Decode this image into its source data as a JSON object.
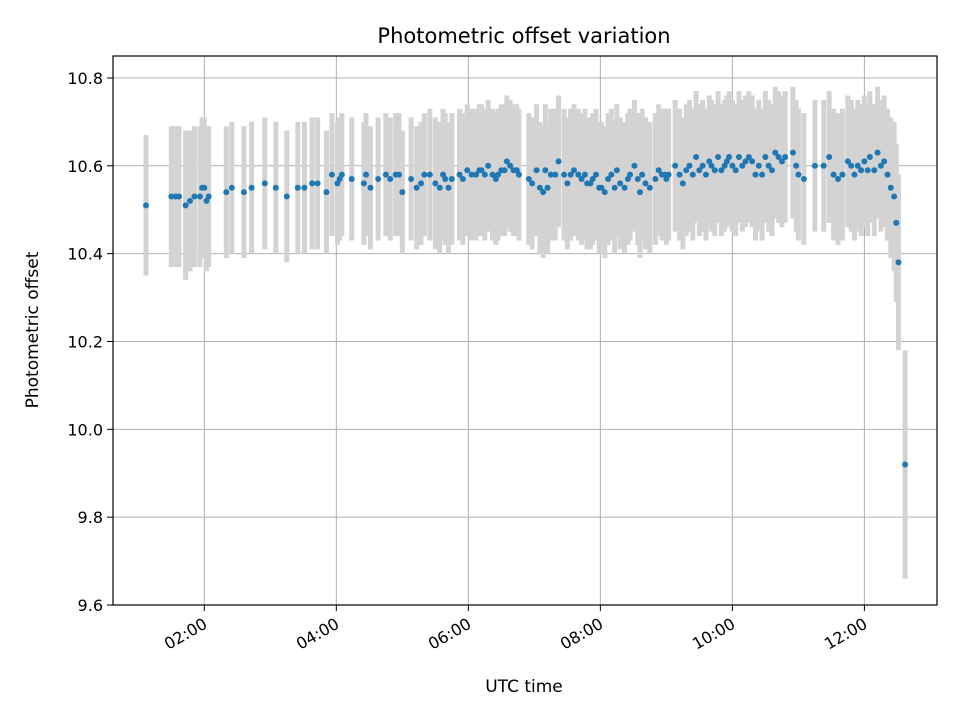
{
  "chart_data": {
    "type": "scatter",
    "title": "Photometric offset variation",
    "xlabel": "UTC time",
    "ylabel": "Photometric offset",
    "xlim": [
      "00:37",
      "13:06"
    ],
    "ylim": [
      9.6,
      10.85
    ],
    "x_ticks": [
      "02:00",
      "04:00",
      "06:00",
      "08:00",
      "10:00",
      "12:00"
    ],
    "y_ticks": [
      "9.6",
      "9.8",
      "10.0",
      "10.2",
      "10.4",
      "10.6",
      "10.8"
    ],
    "grid": true,
    "colors": {
      "marker": "#1f77b4",
      "errorbar": "#d3d3d3",
      "grid": "#b0b0b0"
    },
    "series": [
      {
        "x": [
          "01:07",
          "01:30",
          "01:34",
          "01:37",
          "01:43",
          "01:47",
          "01:51",
          "01:56",
          "01:58",
          "02:00",
          "02:02",
          "02:04",
          "02:20",
          "02:25",
          "02:36",
          "02:43",
          "02:55",
          "03:05",
          "03:15",
          "03:25",
          "03:31",
          "03:38",
          "03:43",
          "03:51",
          "03:56",
          "04:01",
          "04:03",
          "04:05",
          "04:14",
          "04:25",
          "04:27",
          "04:31",
          "04:38",
          "04:45",
          "04:49",
          "04:54",
          "04:57",
          "05:00",
          "05:08",
          "05:13",
          "05:17",
          "05:20",
          "05:25",
          "05:30",
          "05:34",
          "05:37",
          "05:39",
          "05:42",
          "05:45",
          "05:52",
          "05:55",
          "05:59",
          "06:03",
          "06:07",
          "06:10",
          "06:12",
          "06:15",
          "06:18",
          "06:22",
          "06:25",
          "06:27",
          "06:30",
          "06:33",
          "06:35",
          "06:38",
          "06:41",
          "06:44",
          "06:46",
          "06:55",
          "06:58",
          "07:02",
          "07:05",
          "07:08",
          "07:10",
          "07:12",
          "07:15",
          "07:19",
          "07:22",
          "07:27",
          "07:30",
          "07:33",
          "07:36",
          "07:40",
          "07:43",
          "07:46",
          "07:48",
          "07:51",
          "07:53",
          "07:56",
          "07:59",
          "08:01",
          "08:04",
          "08:07",
          "08:10",
          "08:13",
          "08:15",
          "08:18",
          "08:22",
          "08:25",
          "08:27",
          "08:31",
          "08:34",
          "08:36",
          "08:38",
          "08:41",
          "08:45",
          "08:50",
          "08:53",
          "08:56",
          "08:59",
          "09:00",
          "09:02",
          "09:08",
          "09:12",
          "09:15",
          "09:18",
          "09:21",
          "09:24",
          "09:27",
          "09:30",
          "09:33",
          "09:36",
          "09:39",
          "09:41",
          "09:44",
          "09:47",
          "09:50",
          "09:53",
          "09:55",
          "09:57",
          "10:00",
          "10:03",
          "10:06",
          "10:09",
          "10:12",
          "10:15",
          "10:18",
          "10:21",
          "10:24",
          "10:27",
          "10:30",
          "10:33",
          "10:36",
          "10:39",
          "10:42",
          "10:45",
          "10:48",
          "10:55",
          "10:58",
          "11:00",
          "11:05",
          "11:15",
          "11:23",
          "11:28",
          "11:32",
          "11:36",
          "11:40",
          "11:45",
          "11:48",
          "11:51",
          "11:54",
          "11:57",
          "12:00",
          "12:03",
          "12:05",
          "12:09",
          "12:12",
          "12:15",
          "12:18",
          "12:21",
          "12:24",
          "12:27",
          "12:29",
          "12:31",
          "12:37"
        ],
        "y": [
          10.51,
          10.53,
          10.53,
          10.53,
          10.51,
          10.52,
          10.53,
          10.53,
          10.55,
          10.55,
          10.52,
          10.53,
          10.54,
          10.55,
          10.54,
          10.55,
          10.56,
          10.55,
          10.53,
          10.55,
          10.55,
          10.56,
          10.56,
          10.54,
          10.58,
          10.56,
          10.57,
          10.58,
          10.57,
          10.56,
          10.58,
          10.55,
          10.57,
          10.58,
          10.57,
          10.58,
          10.58,
          10.54,
          10.57,
          10.55,
          10.56,
          10.58,
          10.58,
          10.56,
          10.55,
          10.58,
          10.57,
          10.55,
          10.57,
          10.58,
          10.57,
          10.59,
          10.58,
          10.58,
          10.59,
          10.59,
          10.58,
          10.6,
          10.58,
          10.57,
          10.58,
          10.59,
          10.59,
          10.61,
          10.6,
          10.59,
          10.59,
          10.58,
          10.57,
          10.56,
          10.59,
          10.55,
          10.54,
          10.59,
          10.55,
          10.58,
          10.58,
          10.61,
          10.58,
          10.56,
          10.58,
          10.59,
          10.58,
          10.57,
          10.58,
          10.56,
          10.56,
          10.57,
          10.58,
          10.55,
          10.55,
          10.54,
          10.57,
          10.58,
          10.55,
          10.59,
          10.56,
          10.55,
          10.57,
          10.58,
          10.6,
          10.57,
          10.54,
          10.58,
          10.56,
          10.55,
          10.57,
          10.59,
          10.58,
          10.58,
          10.57,
          10.58,
          10.6,
          10.58,
          10.56,
          10.59,
          10.6,
          10.58,
          10.62,
          10.59,
          10.6,
          10.58,
          10.61,
          10.6,
          10.59,
          10.62,
          10.59,
          10.6,
          10.61,
          10.62,
          10.6,
          10.59,
          10.62,
          10.6,
          10.61,
          10.62,
          10.61,
          10.58,
          10.6,
          10.58,
          10.62,
          10.6,
          10.59,
          10.63,
          10.62,
          10.61,
          10.62,
          10.63,
          10.6,
          10.58,
          10.57,
          10.6,
          10.6,
          10.62,
          10.58,
          10.57,
          10.58,
          10.61,
          10.6,
          10.58,
          10.6,
          10.59,
          10.61,
          10.59,
          10.62,
          10.59,
          10.63,
          10.6,
          10.61,
          10.58,
          10.55,
          10.53,
          10.47,
          10.38,
          9.92
        ],
        "yerr": [
          0.16,
          0.16,
          0.16,
          0.16,
          0.17,
          0.16,
          0.16,
          0.16,
          0.16,
          0.16,
          0.16,
          0.16,
          0.15,
          0.15,
          0.15,
          0.15,
          0.15,
          0.15,
          0.15,
          0.15,
          0.15,
          0.15,
          0.15,
          0.14,
          0.14,
          0.14,
          0.14,
          0.14,
          0.14,
          0.14,
          0.14,
          0.14,
          0.14,
          0.14,
          0.14,
          0.14,
          0.14,
          0.14,
          0.14,
          0.14,
          0.14,
          0.14,
          0.15,
          0.15,
          0.15,
          0.15,
          0.15,
          0.15,
          0.15,
          0.15,
          0.15,
          0.15,
          0.15,
          0.15,
          0.15,
          0.15,
          0.15,
          0.15,
          0.15,
          0.15,
          0.15,
          0.15,
          0.15,
          0.15,
          0.15,
          0.15,
          0.15,
          0.15,
          0.15,
          0.15,
          0.15,
          0.15,
          0.15,
          0.15,
          0.15,
          0.15,
          0.15,
          0.15,
          0.15,
          0.15,
          0.15,
          0.15,
          0.15,
          0.15,
          0.15,
          0.15,
          0.15,
          0.15,
          0.15,
          0.15,
          0.15,
          0.15,
          0.15,
          0.15,
          0.15,
          0.15,
          0.15,
          0.15,
          0.15,
          0.15,
          0.15,
          0.15,
          0.15,
          0.15,
          0.15,
          0.15,
          0.15,
          0.15,
          0.15,
          0.15,
          0.15,
          0.15,
          0.15,
          0.15,
          0.15,
          0.15,
          0.15,
          0.15,
          0.15,
          0.15,
          0.15,
          0.15,
          0.15,
          0.15,
          0.15,
          0.15,
          0.15,
          0.15,
          0.15,
          0.15,
          0.15,
          0.15,
          0.15,
          0.15,
          0.15,
          0.15,
          0.15,
          0.15,
          0.15,
          0.15,
          0.15,
          0.15,
          0.15,
          0.15,
          0.15,
          0.15,
          0.15,
          0.15,
          0.15,
          0.15,
          0.15,
          0.15,
          0.15,
          0.15,
          0.15,
          0.15,
          0.15,
          0.15,
          0.15,
          0.15,
          0.15,
          0.15,
          0.15,
          0.15,
          0.15,
          0.15,
          0.15,
          0.15,
          0.15,
          0.15,
          0.16,
          0.17,
          0.18,
          0.2,
          0.26
        ]
      }
    ]
  }
}
